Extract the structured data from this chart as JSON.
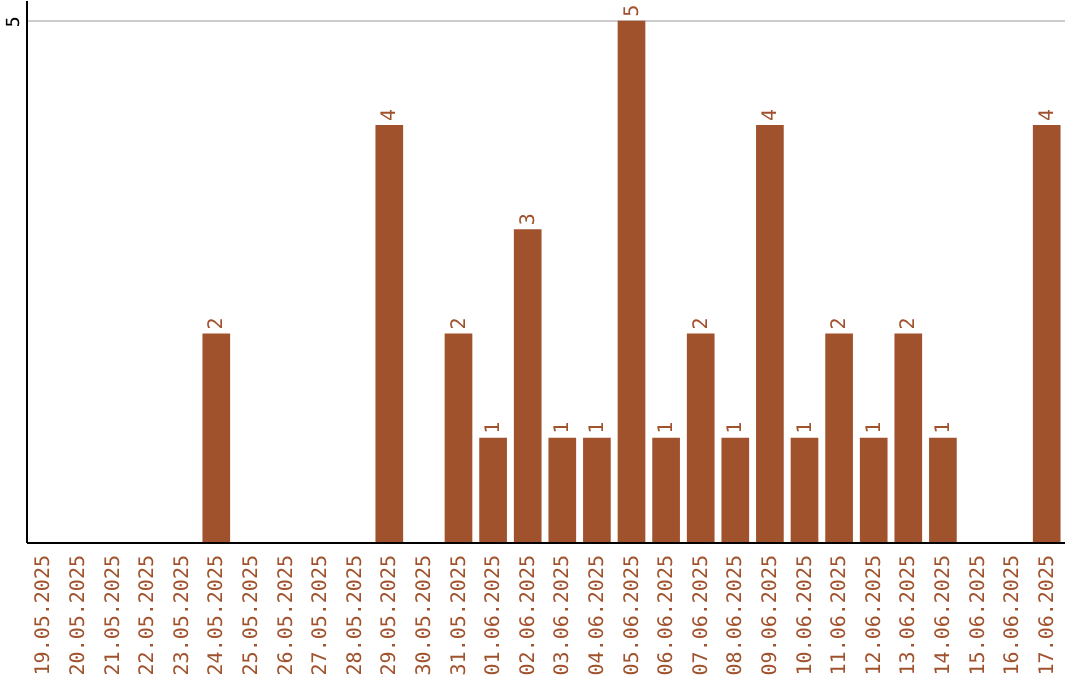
{
  "chart_data": {
    "type": "bar",
    "categories": [
      "19.05.2025",
      "20.05.2025",
      "21.05.2025",
      "22.05.2025",
      "23.05.2025",
      "24.05.2025",
      "25.05.2025",
      "26.05.2025",
      "27.05.2025",
      "28.05.2025",
      "29.05.2025",
      "30.05.2025",
      "31.05.2025",
      "01.06.2025",
      "02.06.2025",
      "03.06.2025",
      "04.06.2025",
      "05.06.2025",
      "06.06.2025",
      "07.06.2025",
      "08.06.2025",
      "09.06.2025",
      "10.06.2025",
      "11.06.2025",
      "12.06.2025",
      "13.06.2025",
      "14.06.2025",
      "15.06.2025",
      "16.06.2025",
      "17.06.2025"
    ],
    "values": [
      0,
      0,
      0,
      0,
      0,
      2,
      0,
      0,
      0,
      0,
      4,
      0,
      2,
      1,
      3,
      1,
      1,
      5,
      1,
      2,
      1,
      4,
      1,
      2,
      1,
      2,
      1,
      0,
      0,
      4
    ],
    "value_labels": [
      null,
      null,
      null,
      null,
      null,
      "2",
      null,
      null,
      null,
      null,
      "4",
      null,
      "2",
      "1",
      "3",
      "1",
      "1",
      "5",
      "1",
      "2",
      "1",
      "4",
      "1",
      "2",
      "1",
      "2",
      "1",
      null,
      null,
      "4"
    ],
    "color": "#a0522d",
    "ylim": [
      0,
      5.2
    ],
    "yticks": [
      5
    ],
    "grid": "y"
  }
}
